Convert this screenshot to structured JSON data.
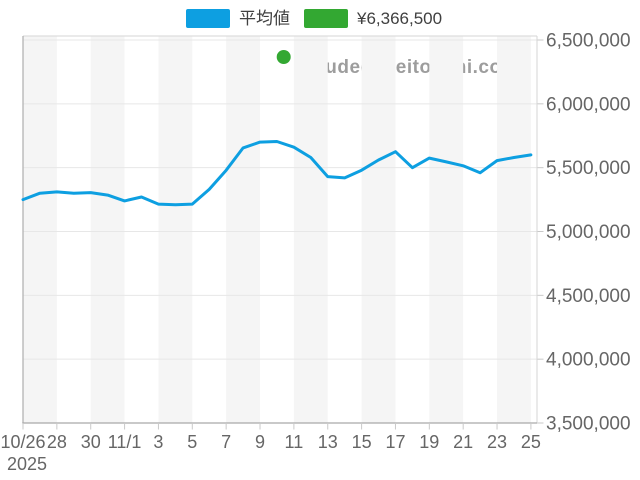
{
  "watermark": "udedokeitoushi.com",
  "legend": {
    "items": [
      {
        "label": "平均値",
        "color": "#0d9fe1"
      },
      {
        "label": "¥6,366,500",
        "color": "#33a832"
      }
    ]
  },
  "chart_data": {
    "type": "line",
    "title": "",
    "legend_position": "top",
    "grid": true,
    "background_band_color": "#f5f5f5",
    "x": [
      "10/26",
      "10/27",
      "10/28",
      "10/29",
      "10/30",
      "10/31",
      "11/1",
      "11/2",
      "11/3",
      "11/4",
      "11/5",
      "11/6",
      "11/7",
      "11/8",
      "11/9",
      "11/10",
      "11/11",
      "11/12",
      "11/13",
      "11/14",
      "11/15",
      "11/16",
      "11/17",
      "11/18",
      "11/19",
      "11/20",
      "11/21",
      "11/22",
      "11/23",
      "11/24",
      "11/25"
    ],
    "series": [
      {
        "name": "平均値",
        "type": "line",
        "color": "#0d9fe1",
        "values": [
          5250000,
          5300000,
          5310000,
          5300000,
          5305000,
          5285000,
          5240000,
          5270000,
          5215000,
          5210000,
          5215000,
          5330000,
          5480000,
          5655000,
          5700000,
          5705000,
          5660000,
          5580000,
          5430000,
          5420000,
          5480000,
          5560000,
          5625000,
          5500000,
          5575000,
          5545000,
          5515000,
          5460000,
          5555000,
          5580000,
          5600000
        ]
      },
      {
        "name": "¥6,366,500",
        "type": "scatter",
        "color": "#33a832",
        "points": [
          {
            "x_index": 15.4,
            "value": 6366500
          }
        ]
      }
    ],
    "ylim": [
      3500000,
      6500000
    ],
    "ytick_step": 500000,
    "ytick_labels": [
      "6,500,000",
      "6,000,000",
      "5,500,000",
      "5,000,000",
      "4,500,000",
      "4,000,000",
      "3,500,000"
    ],
    "xtick_labels": [
      "10/26",
      "28",
      "30",
      "11/1",
      "3",
      "5",
      "7",
      "9",
      "11",
      "13",
      "15",
      "17",
      "19",
      "21",
      "23",
      "25"
    ],
    "x_axis_year": "2025"
  }
}
